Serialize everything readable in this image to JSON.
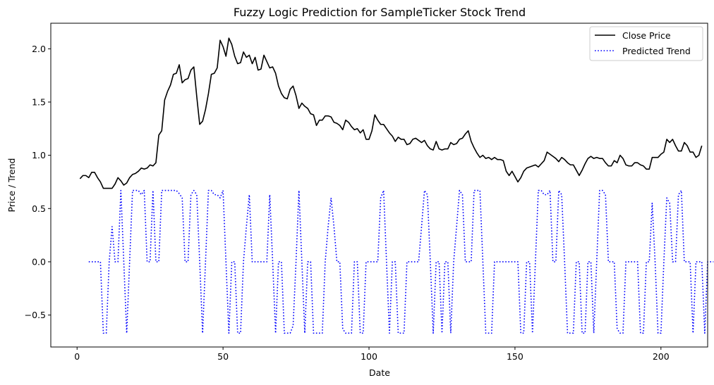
{
  "chart_data": {
    "type": "line",
    "title": "Fuzzy Logic Prediction for SampleTicker Stock Trend",
    "xlabel": "Date",
    "ylabel": "Price / Trend",
    "xlim": [
      -9,
      216
    ],
    "ylim": [
      -0.8,
      2.24
    ],
    "x_ticks": [
      0,
      50,
      100,
      150,
      200
    ],
    "y_ticks": [
      -0.5,
      0.0,
      0.5,
      1.0,
      1.5,
      2.0
    ],
    "y_tick_labels": [
      "−0.5",
      "0.0",
      "0.5",
      "1.0",
      "1.5",
      "2.0"
    ],
    "grid": false,
    "legend_position": "top-right",
    "series": [
      {
        "name": "Close Price",
        "color": "#000000",
        "style": "solid",
        "x_start": 1,
        "values": [
          0.78,
          0.81,
          0.81,
          0.79,
          0.84,
          0.84,
          0.79,
          0.75,
          0.69,
          0.69,
          0.69,
          0.69,
          0.73,
          0.79,
          0.76,
          0.72,
          0.74,
          0.79,
          0.82,
          0.83,
          0.85,
          0.88,
          0.87,
          0.88,
          0.91,
          0.9,
          0.93,
          1.19,
          1.23,
          1.52,
          1.6,
          1.66,
          1.76,
          1.77,
          1.85,
          1.68,
          1.71,
          1.72,
          1.8,
          1.83,
          1.55,
          1.29,
          1.32,
          1.43,
          1.58,
          1.76,
          1.77,
          1.82,
          2.08,
          2.02,
          1.93,
          2.1,
          2.04,
          1.93,
          1.86,
          1.87,
          1.97,
          1.92,
          1.94,
          1.86,
          1.92,
          1.8,
          1.81,
          1.94,
          1.88,
          1.82,
          1.83,
          1.77,
          1.65,
          1.58,
          1.54,
          1.53,
          1.62,
          1.65,
          1.56,
          1.44,
          1.49,
          1.46,
          1.44,
          1.39,
          1.38,
          1.28,
          1.33,
          1.33,
          1.37,
          1.37,
          1.36,
          1.31,
          1.3,
          1.28,
          1.24,
          1.33,
          1.31,
          1.27,
          1.24,
          1.25,
          1.21,
          1.24,
          1.15,
          1.15,
          1.23,
          1.38,
          1.33,
          1.29,
          1.29,
          1.25,
          1.21,
          1.18,
          1.13,
          1.17,
          1.15,
          1.15,
          1.1,
          1.11,
          1.15,
          1.16,
          1.14,
          1.12,
          1.14,
          1.09,
          1.06,
          1.05,
          1.13,
          1.06,
          1.05,
          1.06,
          1.06,
          1.12,
          1.1,
          1.11,
          1.15,
          1.16,
          1.2,
          1.23,
          1.13,
          1.07,
          1.02,
          0.98,
          1.0,
          0.97,
          0.98,
          0.96,
          0.98,
          0.96,
          0.96,
          0.95,
          0.85,
          0.81,
          0.85,
          0.8,
          0.75,
          0.79,
          0.85,
          0.88,
          0.89,
          0.9,
          0.91,
          0.89,
          0.92,
          0.95,
          1.03,
          1.01,
          0.99,
          0.97,
          0.94,
          0.98,
          0.96,
          0.93,
          0.91,
          0.91,
          0.86,
          0.81,
          0.86,
          0.92,
          0.97,
          0.99,
          0.97,
          0.98,
          0.97,
          0.97,
          0.93,
          0.9,
          0.9,
          0.95,
          0.93,
          1.0,
          0.97,
          0.91,
          0.9,
          0.9,
          0.93,
          0.93,
          0.91,
          0.9,
          0.87,
          0.87,
          0.98,
          0.98,
          0.98,
          1.01,
          1.03,
          1.15,
          1.12,
          1.15,
          1.09,
          1.04,
          1.04,
          1.12,
          1.09,
          1.03,
          1.03,
          0.98,
          1.0,
          1.09
        ]
      },
      {
        "name": "Predicted Trend",
        "color": "#0000ff",
        "style": "dotted",
        "x_start": 4,
        "values": [
          0,
          0,
          0,
          0,
          0,
          -0.67,
          -0.67,
          0,
          0.33,
          0,
          0,
          0.67,
          0,
          -0.67,
          0,
          0.67,
          0.67,
          0.67,
          0.63,
          0.67,
          0,
          0,
          0.67,
          0,
          0,
          0.67,
          0.67,
          0.67,
          0.67,
          0.67,
          0.67,
          0.64,
          0.6,
          0,
          0,
          0.63,
          0.67,
          0.63,
          0,
          -0.67,
          0,
          0.67,
          0.67,
          0.63,
          0.63,
          0.6,
          0.67,
          0,
          -0.67,
          0,
          0,
          -0.67,
          -0.67,
          0,
          0.33,
          0.63,
          0,
          0,
          0,
          0,
          0,
          0,
          0.63,
          0,
          -0.67,
          0,
          0,
          -0.67,
          -0.67,
          -0.67,
          -0.6,
          0,
          0.67,
          0,
          -0.67,
          0,
          0,
          -0.67,
          -0.67,
          -0.67,
          -0.67,
          0,
          0.33,
          0.6,
          0.33,
          0,
          0,
          -0.63,
          -0.67,
          -0.67,
          -0.67,
          0,
          0,
          -0.67,
          -0.67,
          0,
          0,
          0,
          0,
          0,
          0.6,
          0.67,
          0,
          -0.67,
          0,
          0,
          -0.67,
          -0.67,
          -0.67,
          0,
          0,
          0,
          0,
          0,
          0.33,
          0.67,
          0.63,
          0,
          -0.67,
          0,
          0,
          -0.67,
          0,
          0,
          -0.67,
          0,
          0.33,
          0.67,
          0.63,
          0,
          0,
          0,
          0.67,
          0.67,
          0.67,
          0,
          -0.67,
          -0.67,
          -0.67,
          0,
          0,
          0,
          0,
          0,
          0,
          0,
          0,
          0,
          -0.67,
          -0.67,
          0,
          0,
          -0.67,
          0,
          0.67,
          0.67,
          0.63,
          0.63,
          0.67,
          0,
          0,
          0.67,
          0.63,
          0,
          -0.67,
          -0.67,
          -0.67,
          0,
          0,
          -0.67,
          -0.67,
          0,
          0,
          -0.67,
          0,
          0.67,
          0.67,
          0.63,
          0,
          0,
          0,
          -0.63,
          -0.67,
          -0.67,
          0,
          0,
          0,
          0,
          0,
          -0.67,
          -0.67,
          0,
          0,
          0.55,
          0,
          -0.67,
          -0.67,
          0,
          0.6,
          0.55,
          0,
          0,
          0.63,
          0.67,
          0,
          0,
          0,
          -0.67,
          0,
          0,
          0,
          -0.67,
          0,
          0,
          0
        ]
      }
    ]
  }
}
